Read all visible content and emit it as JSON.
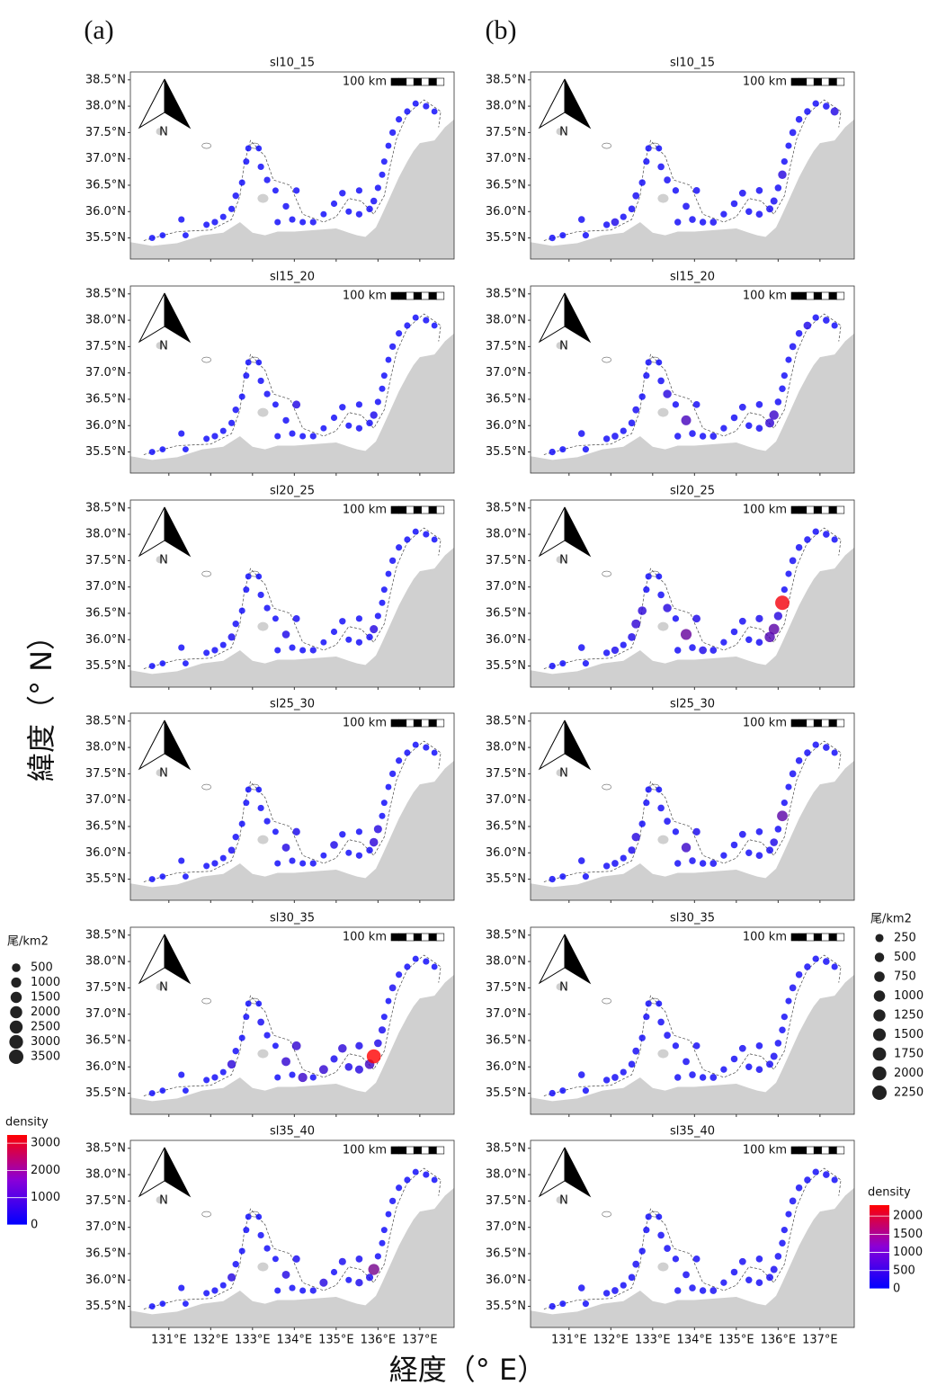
{
  "panel_labels": [
    "(a)",
    "(b)"
  ],
  "ylabel": "緯度（° N）",
  "xlabel": "経度（° E）",
  "scale_label": "100 km",
  "north_label": "N",
  "xlim": [
    130.08,
    137.82
  ],
  "ylim": [
    35.1,
    38.65
  ],
  "xticks": [
    {
      "value": 131,
      "label": "131°E"
    },
    {
      "value": 132,
      "label": "132°E"
    },
    {
      "value": 133,
      "label": "133°E"
    },
    {
      "value": 134,
      "label": "134°E"
    },
    {
      "value": 135,
      "label": "135°E"
    },
    {
      "value": 136,
      "label": "136°E"
    },
    {
      "value": 137,
      "label": "137°E"
    }
  ],
  "yticks": [
    {
      "value": 35.5,
      "label": "35.5°N"
    },
    {
      "value": 36,
      "label": "36.0°N"
    },
    {
      "value": 36.5,
      "label": "36.5°N"
    },
    {
      "value": 37,
      "label": "37.0°N"
    },
    {
      "value": 37.5,
      "label": "37.5°N"
    },
    {
      "value": 38,
      "label": "38.0°N"
    },
    {
      "value": 38.5,
      "label": "38.5°N"
    }
  ],
  "stations": {
    "lon": [
      130.6,
      130.85,
      131.3,
      131.4,
      131.9,
      132.1,
      132.3,
      132.5,
      132.6,
      132.75,
      132.85,
      132.9,
      133.15,
      133.2,
      133.35,
      133.55,
      133.8,
      133.95,
      134.2,
      134.45,
      134.7,
      134.95,
      135.15,
      135.3,
      135.55,
      135.8,
      135.9,
      136.0,
      136.1,
      136.15,
      136.25,
      136.35,
      136.5,
      136.7,
      136.9,
      137.15,
      137.35,
      134.05,
      133.6,
      135.55
    ],
    "lat": [
      35.5,
      35.55,
      35.85,
      35.55,
      35.75,
      35.8,
      35.9,
      36.05,
      36.3,
      36.55,
      36.95,
      37.2,
      37.2,
      36.85,
      36.6,
      36.4,
      36.1,
      35.85,
      35.8,
      35.8,
      35.95,
      36.15,
      36.35,
      36.0,
      35.95,
      36.05,
      36.2,
      36.45,
      36.7,
      36.95,
      37.25,
      37.5,
      37.75,
      37.9,
      38.05,
      38.0,
      37.9,
      36.4,
      35.8,
      36.4
    ]
  },
  "legends": [
    {
      "size_title": "尾/km2",
      "sizes": [
        500,
        1000,
        1500,
        2000,
        2500,
        3000,
        3500
      ],
      "color_title": "density",
      "color_lim": [
        0,
        3300
      ],
      "color_ticks": [
        0,
        1000,
        2000,
        3000
      ],
      "color_low": "#0000ff",
      "color_high": "#ff0000"
    },
    {
      "size_title": "尾/km2",
      "sizes": [
        250,
        500,
        750,
        1000,
        1250,
        1500,
        1750,
        2000,
        2250
      ],
      "color_title": "density",
      "color_lim": [
        0,
        2300
      ],
      "color_ticks": [
        0,
        500,
        1000,
        1500,
        2000
      ],
      "color_low": "#0000ff",
      "color_high": "#ff0000"
    }
  ],
  "chart_data": [
    {
      "type": "scatter",
      "title": "sl10_15",
      "values": [
        60,
        40,
        80,
        50,
        70,
        90,
        60,
        80,
        100,
        70,
        60,
        50,
        40,
        80,
        90,
        60,
        100,
        80,
        70,
        90,
        60,
        80,
        100,
        70,
        90,
        110,
        120,
        80,
        70,
        60,
        50,
        90,
        80,
        70,
        60,
        80,
        50,
        90,
        70,
        80
      ]
    },
    {
      "type": "scatter",
      "title": "sl15_20",
      "values": [
        60,
        40,
        80,
        50,
        70,
        90,
        60,
        80,
        100,
        70,
        60,
        50,
        40,
        80,
        90,
        60,
        100,
        80,
        70,
        90,
        60,
        80,
        100,
        70,
        90,
        110,
        250,
        80,
        70,
        60,
        50,
        90,
        80,
        70,
        60,
        80,
        50,
        350,
        70,
        80
      ]
    },
    {
      "type": "scatter",
      "title": "sl20_25",
      "values": [
        60,
        40,
        80,
        50,
        70,
        90,
        60,
        200,
        100,
        70,
        60,
        50,
        40,
        80,
        90,
        60,
        300,
        80,
        70,
        90,
        60,
        80,
        100,
        70,
        90,
        110,
        400,
        80,
        70,
        60,
        50,
        90,
        80,
        70,
        60,
        80,
        50,
        150,
        70,
        80
      ]
    },
    {
      "type": "scatter",
      "title": "sl25_30",
      "values": [
        60,
        40,
        80,
        50,
        70,
        90,
        60,
        150,
        100,
        70,
        60,
        50,
        40,
        80,
        90,
        60,
        350,
        80,
        70,
        90,
        60,
        300,
        100,
        70,
        90,
        110,
        500,
        400,
        70,
        60,
        50,
        90,
        80,
        70,
        60,
        80,
        50,
        250,
        70,
        80
      ]
    },
    {
      "type": "scatter",
      "title": "sl30_35",
      "values": [
        60,
        40,
        80,
        50,
        70,
        90,
        60,
        500,
        100,
        70,
        60,
        50,
        40,
        150,
        90,
        60,
        600,
        80,
        700,
        90,
        600,
        200,
        500,
        300,
        400,
        800,
        3300,
        300,
        200,
        60,
        50,
        150,
        80,
        70,
        60,
        80,
        50,
        600,
        70,
        250
      ]
    },
    {
      "type": "scatter",
      "title": "sl35_40",
      "values": [
        60,
        40,
        80,
        50,
        70,
        90,
        60,
        400,
        100,
        70,
        60,
        50,
        40,
        80,
        90,
        60,
        350,
        80,
        70,
        90,
        400,
        80,
        200,
        70,
        250,
        200,
        1500,
        80,
        70,
        60,
        50,
        90,
        80,
        70,
        60,
        80,
        50,
        200,
        70,
        150
      ]
    },
    {
      "type": "scatter",
      "title": "sl10_15",
      "values": [
        60,
        40,
        80,
        50,
        70,
        200,
        60,
        80,
        100,
        70,
        60,
        50,
        40,
        80,
        90,
        60,
        100,
        80,
        70,
        90,
        60,
        80,
        100,
        70,
        90,
        110,
        120,
        80,
        300,
        60,
        50,
        90,
        80,
        70,
        60,
        80,
        250,
        90,
        70,
        80
      ]
    },
    {
      "type": "scatter",
      "title": "sl15_20",
      "values": [
        60,
        40,
        80,
        50,
        70,
        90,
        60,
        80,
        100,
        70,
        60,
        50,
        40,
        80,
        300,
        60,
        600,
        80,
        70,
        90,
        60,
        80,
        100,
        70,
        90,
        400,
        500,
        80,
        70,
        60,
        50,
        90,
        80,
        200,
        60,
        80,
        50,
        90,
        70,
        80
      ]
    },
    {
      "type": "scatter",
      "title": "sl20_25",
      "values": [
        60,
        40,
        80,
        50,
        70,
        150,
        60,
        200,
        400,
        350,
        60,
        50,
        40,
        80,
        300,
        60,
        900,
        80,
        200,
        90,
        60,
        80,
        100,
        70,
        90,
        700,
        800,
        300,
        2200,
        60,
        50,
        90,
        80,
        70,
        60,
        80,
        50,
        200,
        70,
        150
      ]
    },
    {
      "type": "scatter",
      "title": "sl25_30",
      "values": [
        60,
        40,
        80,
        50,
        70,
        90,
        60,
        150,
        300,
        70,
        60,
        50,
        40,
        80,
        90,
        60,
        500,
        80,
        70,
        90,
        60,
        80,
        100,
        70,
        90,
        110,
        200,
        80,
        800,
        60,
        50,
        90,
        80,
        70,
        60,
        80,
        50,
        150,
        70,
        80
      ]
    },
    {
      "type": "scatter",
      "title": "sl30_35",
      "values": [
        60,
        40,
        80,
        50,
        70,
        90,
        60,
        80,
        100,
        70,
        60,
        50,
        40,
        80,
        90,
        60,
        100,
        80,
        70,
        90,
        60,
        80,
        100,
        70,
        90,
        110,
        120,
        80,
        70,
        60,
        50,
        90,
        80,
        70,
        60,
        80,
        50,
        90,
        70,
        80
      ]
    },
    {
      "type": "scatter",
      "title": "sl35_40",
      "values": [
        60,
        40,
        80,
        50,
        70,
        90,
        60,
        80,
        100,
        70,
        60,
        50,
        40,
        80,
        90,
        60,
        100,
        80,
        70,
        90,
        60,
        80,
        100,
        70,
        90,
        110,
        120,
        80,
        70,
        60,
        50,
        90,
        80,
        70,
        60,
        80,
        50,
        90,
        70,
        80
      ]
    }
  ]
}
